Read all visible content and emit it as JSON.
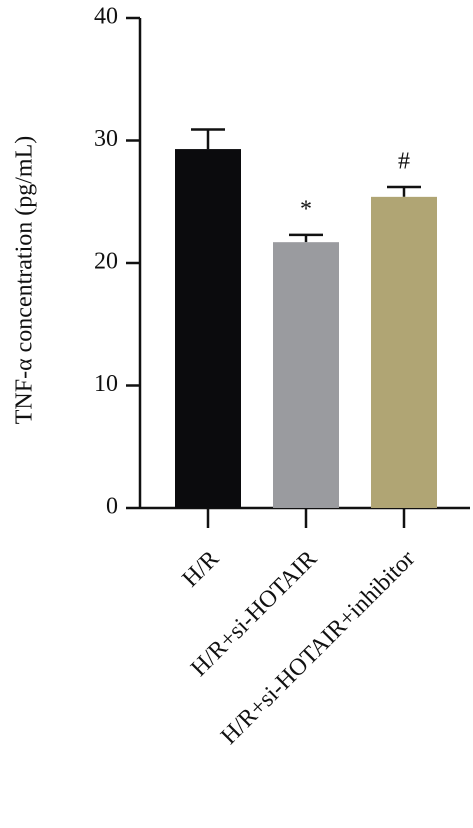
{
  "chart_data": {
    "type": "bar",
    "y_label": "TNF-α concentration (pg/mL)",
    "categories": [
      "H/R",
      "H/R+si-HOTAIR",
      "H/R+si-HOTAIR+inhibitor"
    ],
    "values": [
      29.3,
      21.7,
      25.4
    ],
    "errors": [
      1.6,
      0.6,
      0.8
    ],
    "colors": [
      "#0b0b0d",
      "#9a9b9f",
      "#b0a574"
    ],
    "annotations": [
      null,
      "*",
      "#"
    ],
    "ylim": [
      0,
      40
    ],
    "yticks": [
      0,
      10,
      20,
      30,
      40
    ],
    "grid": false
  }
}
